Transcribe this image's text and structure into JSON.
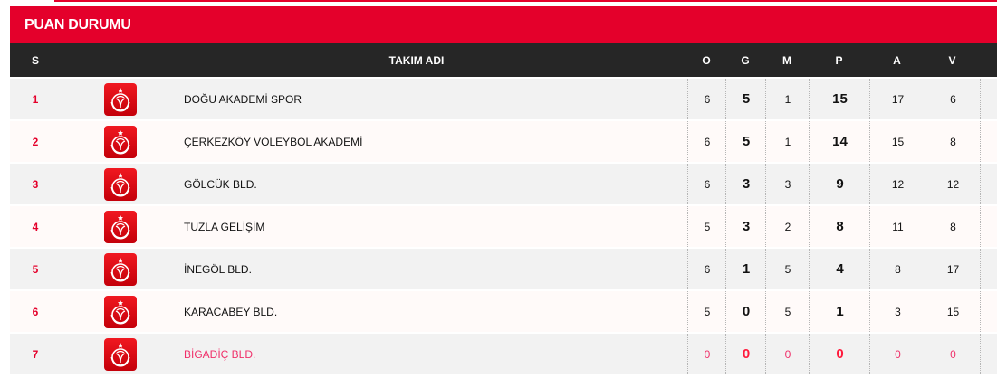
{
  "title": "PUAN DURUMU",
  "colors": {
    "accent": "#e4002b",
    "header": "#262626",
    "highlight": "#f0306a"
  },
  "columns": {
    "s": "S",
    "team": "TAKIM ADI",
    "o": "O",
    "g": "G",
    "m": "M",
    "p": "P",
    "a": "A",
    "v": "V"
  },
  "rows": [
    {
      "s": "1",
      "team": "DOĞU AKADEMİ SPOR",
      "o": "6",
      "g": "5",
      "m": "1",
      "p": "15",
      "a": "17",
      "v": "6"
    },
    {
      "s": "2",
      "team": "ÇERKEZKÖY VOLEYBOL AKADEMİ",
      "o": "6",
      "g": "5",
      "m": "1",
      "p": "14",
      "a": "15",
      "v": "8"
    },
    {
      "s": "3",
      "team": "GÖLCÜK BLD.",
      "o": "6",
      "g": "3",
      "m": "3",
      "p": "9",
      "a": "12",
      "v": "12"
    },
    {
      "s": "4",
      "team": "TUZLA GELİŞİM",
      "o": "5",
      "g": "3",
      "m": "2",
      "p": "8",
      "a": "11",
      "v": "8"
    },
    {
      "s": "5",
      "team": "İNEGÖL BLD.",
      "o": "6",
      "g": "1",
      "m": "5",
      "p": "4",
      "a": "8",
      "v": "17"
    },
    {
      "s": "6",
      "team": "KARACABEY BLD.",
      "o": "5",
      "g": "0",
      "m": "5",
      "p": "1",
      "a": "3",
      "v": "15"
    },
    {
      "s": "7",
      "team": "BİGADİÇ BLD.",
      "o": "0",
      "g": "0",
      "m": "0",
      "p": "0",
      "a": "0",
      "v": "0",
      "highlighted": true
    }
  ]
}
